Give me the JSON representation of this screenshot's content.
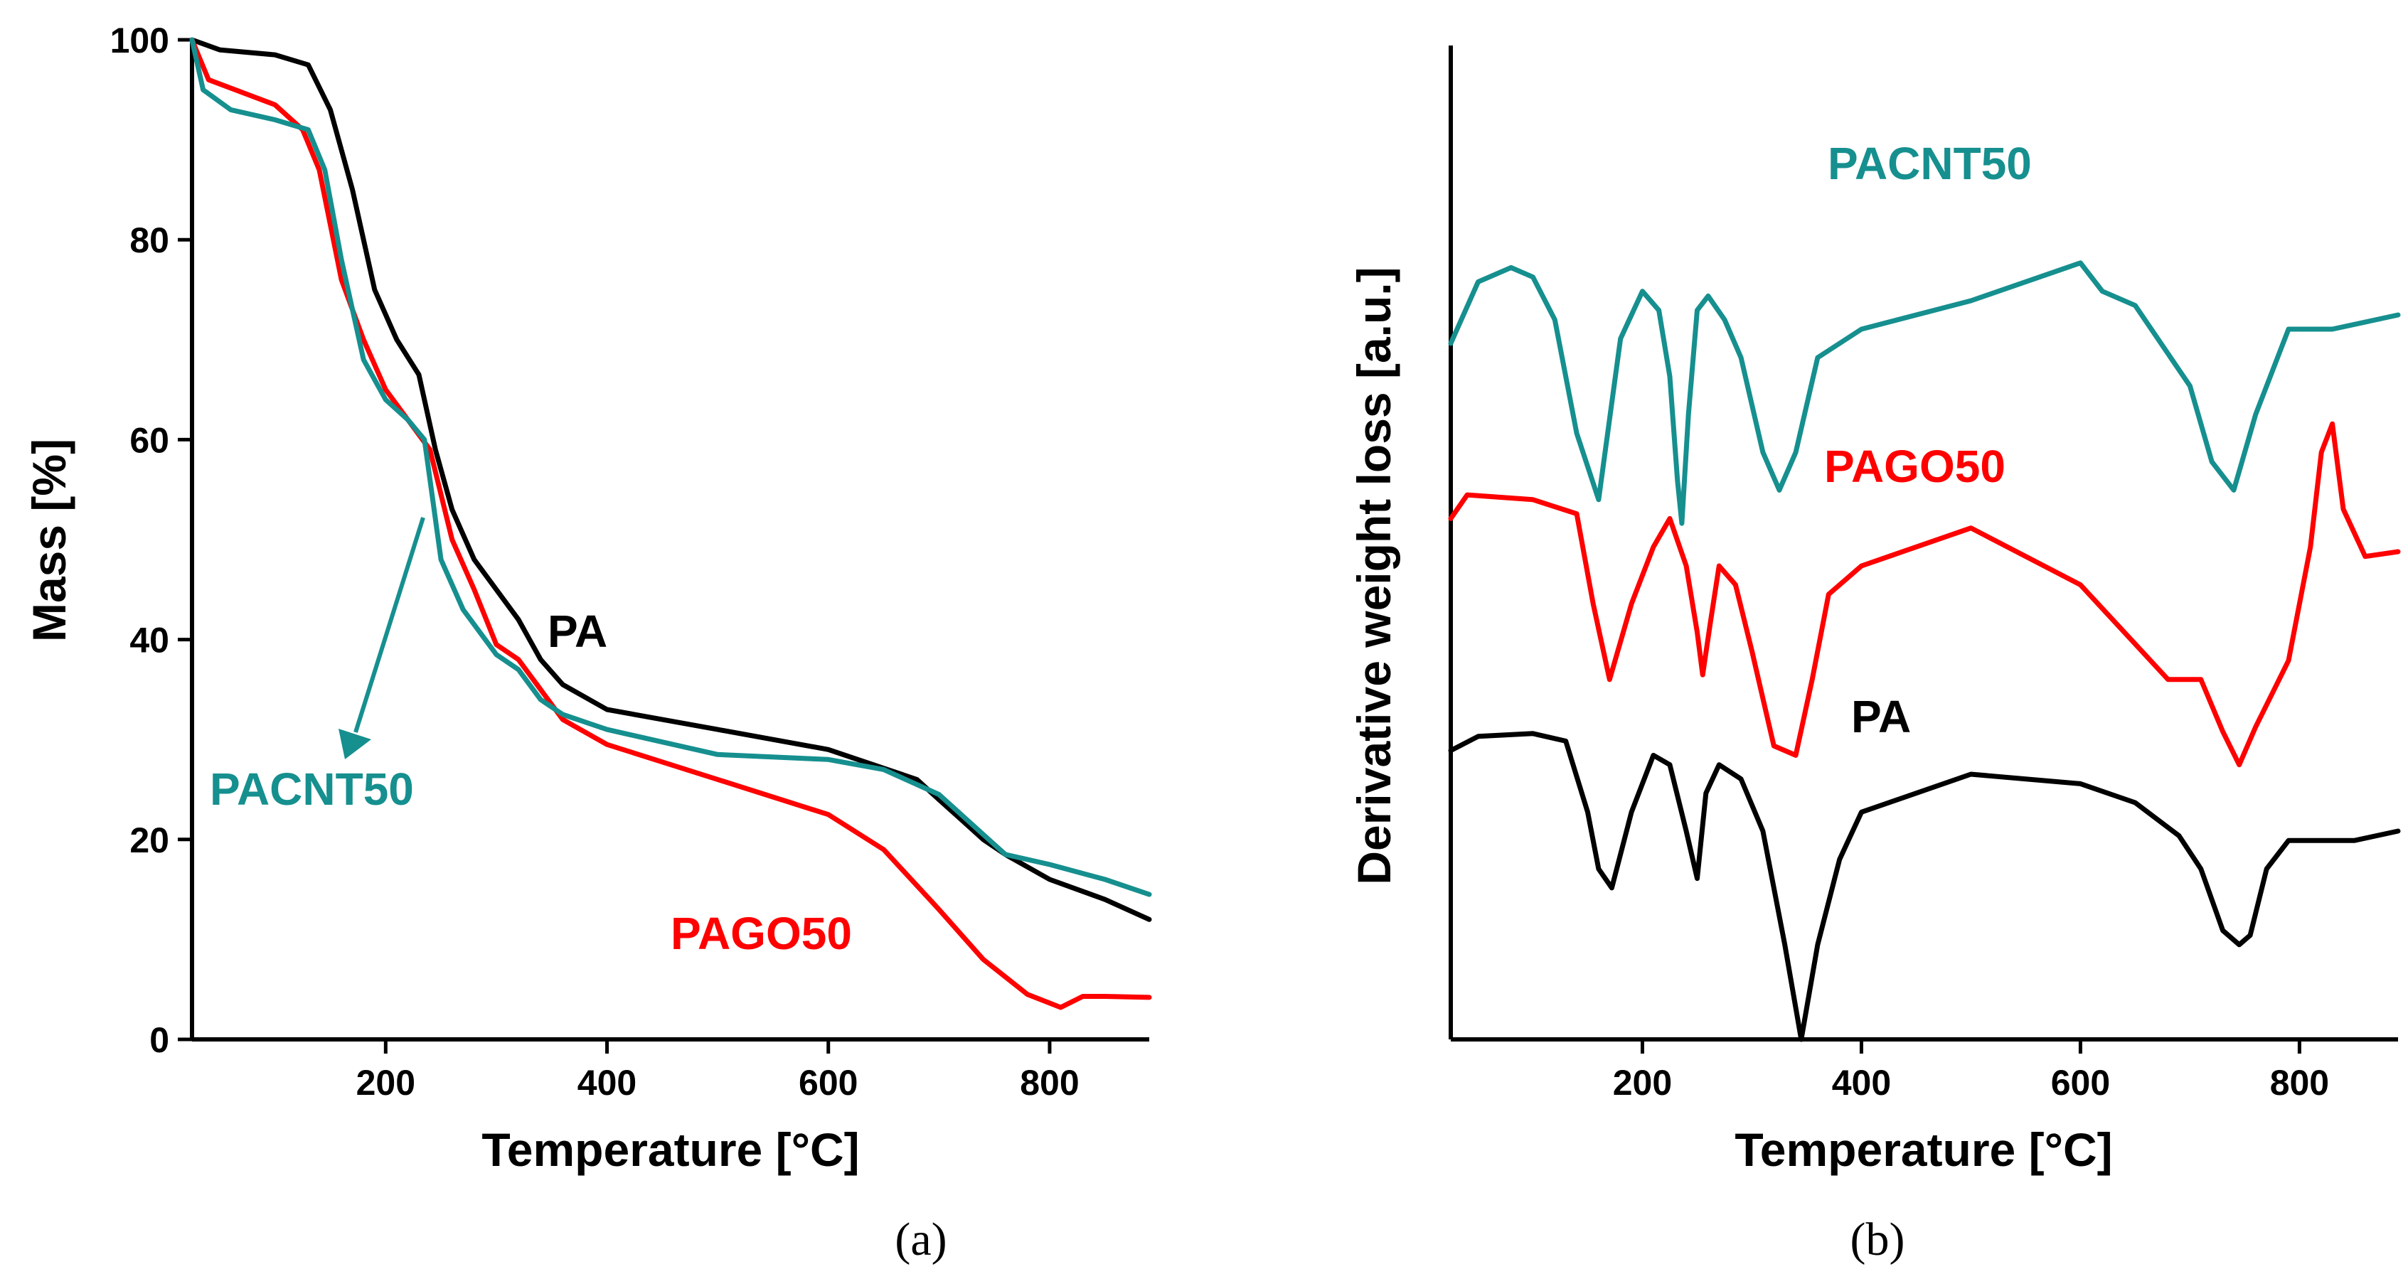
{
  "colors": {
    "PA": "#000000",
    "PAGO50": "#ff0000",
    "PACNT50": "#168f8f"
  },
  "chart_data": [
    {
      "panel": "(a)",
      "type": "line",
      "xlabel": "Temperature [°C]",
      "ylabel": "Mass [%]",
      "xlim": [
        25,
        890
      ],
      "ylim": [
        0,
        100
      ],
      "xticks": [
        200,
        400,
        600,
        800
      ],
      "yticks": [
        0,
        20,
        40,
        60,
        80,
        100
      ],
      "grid": false,
      "series": [
        {
          "name": "PA",
          "x": [
            25,
            50,
            100,
            130,
            150,
            170,
            190,
            210,
            230,
            245,
            260,
            280,
            300,
            320,
            340,
            360,
            400,
            500,
            600,
            680,
            700,
            720,
            740,
            760,
            800,
            850,
            890
          ],
          "y": [
            100,
            99,
            98.5,
            97.5,
            93,
            85,
            75,
            70,
            66.5,
            59,
            53,
            48,
            45,
            42,
            38,
            35.5,
            33,
            31,
            29,
            26,
            24,
            22,
            20,
            18.5,
            16,
            14,
            12
          ]
        },
        {
          "name": "PAGO50",
          "x": [
            25,
            40,
            100,
            125,
            140,
            160,
            180,
            200,
            220,
            240,
            260,
            280,
            300,
            320,
            340,
            360,
            400,
            500,
            600,
            650,
            700,
            740,
            780,
            810,
            830,
            850,
            890
          ],
          "y": [
            100,
            96,
            93.5,
            91,
            87,
            76,
            70,
            65,
            62,
            59,
            50,
            45,
            39.5,
            38,
            35,
            32,
            29.5,
            26,
            22.5,
            19,
            13,
            8,
            4.5,
            3.2,
            4.3,
            4.3,
            4.2
          ]
        },
        {
          "name": "PACNT50",
          "x": [
            25,
            35,
            60,
            100,
            130,
            145,
            160,
            180,
            200,
            220,
            235,
            240,
            250,
            270,
            300,
            320,
            340,
            360,
            400,
            500,
            600,
            650,
            700,
            740,
            760,
            800,
            850,
            890
          ],
          "y": [
            100,
            95,
            93,
            92,
            91,
            87,
            78,
            68,
            64,
            62,
            60,
            56,
            48,
            43,
            38.5,
            37,
            34,
            32.5,
            31,
            28.5,
            28,
            27,
            24.5,
            20.5,
            18.5,
            17.5,
            16,
            14.5
          ]
        }
      ],
      "annotations": [
        {
          "text": "PA",
          "series": "PA"
        },
        {
          "text": "PACNT50",
          "series": "PACNT50"
        },
        {
          "text": "PAGO50",
          "series": "PAGO50"
        }
      ]
    },
    {
      "panel": "(b)",
      "type": "line",
      "xlabel": "Temperature [°C]",
      "ylabel": "Derivative weight loss [a.u.]",
      "xlim": [
        25,
        890
      ],
      "ylim": [
        0,
        100
      ],
      "xticks": [
        200,
        400,
        600,
        800
      ],
      "yticks": [],
      "grid": false,
      "series": [
        {
          "name": "PACNT50",
          "x": [
            25,
            50,
            80,
            100,
            120,
            140,
            160,
            180,
            200,
            215,
            225,
            232,
            236,
            242,
            250,
            260,
            275,
            290,
            310,
            325,
            340,
            360,
            400,
            500,
            600,
            620,
            650,
            700,
            720,
            740,
            760,
            790,
            830,
            890
          ],
          "y": [
            73.5,
            80,
            81.5,
            80.5,
            76,
            64,
            57,
            74,
            79,
            77,
            70,
            59,
            54.5,
            66,
            77,
            78.5,
            76,
            72,
            62,
            58,
            62,
            72,
            75,
            78,
            82,
            79,
            77.5,
            69,
            61,
            58,
            66,
            75,
            75,
            76.5
          ]
        },
        {
          "name": "PAGO50",
          "x": [
            25,
            40,
            100,
            140,
            155,
            170,
            190,
            210,
            225,
            240,
            250,
            255,
            262,
            270,
            285,
            300,
            320,
            340,
            355,
            370,
            400,
            500,
            600,
            680,
            710,
            730,
            745,
            760,
            790,
            810,
            820,
            830,
            840,
            860,
            890
          ],
          "y": [
            55,
            57.5,
            57,
            55.5,
            46,
            38,
            46,
            52,
            55,
            50,
            43,
            38.5,
            44,
            50,
            48,
            41,
            31,
            30,
            38,
            47,
            50,
            54,
            48,
            38,
            38,
            32.5,
            29,
            33,
            40,
            52,
            62,
            65,
            56,
            51,
            51.5
          ]
        },
        {
          "name": "PA",
          "x": [
            25,
            50,
            100,
            130,
            150,
            160,
            172,
            190,
            210,
            225,
            240,
            250,
            258,
            270,
            290,
            310,
            330,
            345,
            360,
            380,
            400,
            500,
            600,
            650,
            690,
            710,
            730,
            745,
            755,
            770,
            790,
            850,
            890
          ],
          "y": [
            30.5,
            32,
            32.3,
            31.5,
            24,
            18,
            16,
            24,
            30,
            29,
            22,
            17,
            26,
            29,
            27.5,
            22,
            10,
            0,
            10,
            19,
            24,
            28,
            27,
            25,
            21.5,
            18,
            11.5,
            10,
            11,
            18,
            21,
            21,
            22
          ]
        }
      ],
      "annotations": [
        {
          "text": "PACNT50",
          "series": "PACNT50"
        },
        {
          "text": "PAGO50",
          "series": "PAGO50"
        },
        {
          "text": "PA",
          "series": "PA"
        }
      ]
    }
  ]
}
